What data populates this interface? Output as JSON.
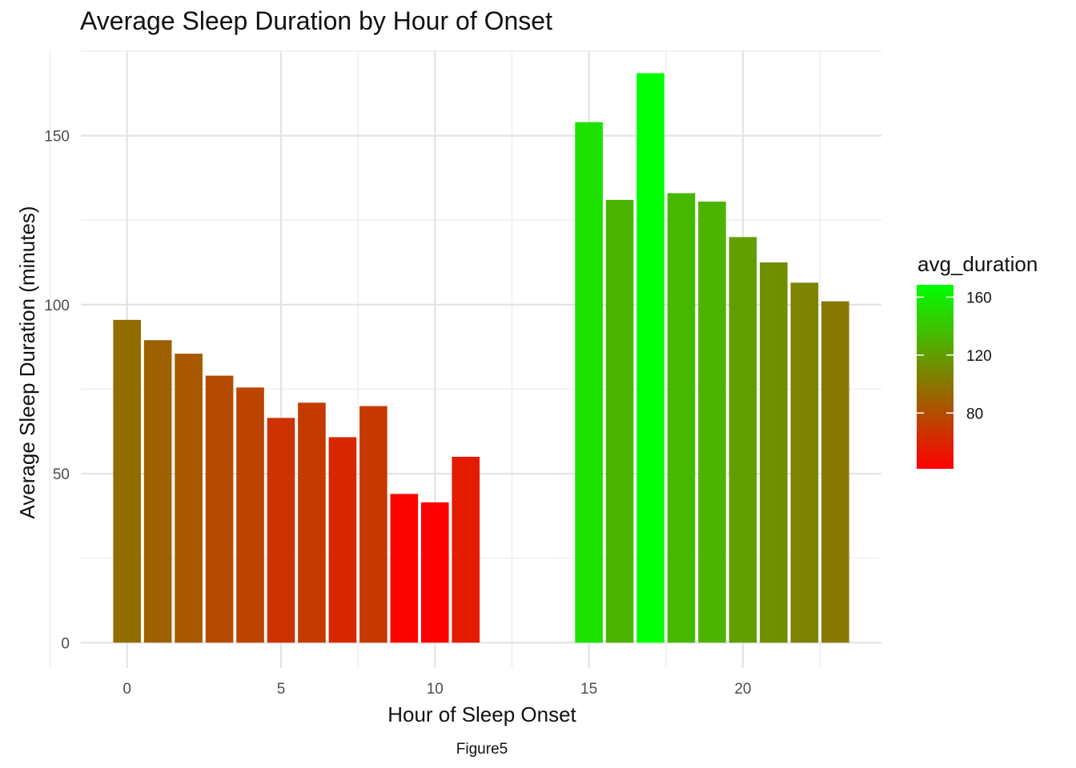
{
  "chart_data": {
    "type": "bar",
    "title": "Average Sleep Duration by Hour of Onset",
    "xlabel": "Hour of Sleep Onset",
    "ylabel": "Average Sleep Duration (minutes)",
    "caption": "Figure5",
    "x": [
      0,
      1,
      2,
      3,
      4,
      5,
      6,
      7,
      8,
      9,
      10,
      11,
      15,
      16,
      17,
      18,
      19,
      20,
      21,
      22,
      23
    ],
    "values": [
      95.5,
      89.5,
      85.5,
      79,
      75.5,
      66.5,
      71,
      60.8,
      70,
      44,
      41.5,
      55,
      154,
      131,
      168.5,
      133,
      130.5,
      120,
      112.5,
      106.5,
      101
    ],
    "xlim": [
      -1.5,
      24.5
    ],
    "ylim": [
      -7.5,
      175
    ],
    "x_ticks": [
      "0",
      "5",
      "10",
      "15",
      "20"
    ],
    "y_ticks": [
      "0",
      "50",
      "100",
      "150"
    ],
    "grid": true,
    "legend": {
      "title": "avg_duration",
      "position": "right",
      "labels": [
        "80",
        "120",
        "160"
      ],
      "range": [
        41.5,
        168.5
      ],
      "low_color": "#FF0000",
      "high_color": "#00FF00"
    }
  }
}
